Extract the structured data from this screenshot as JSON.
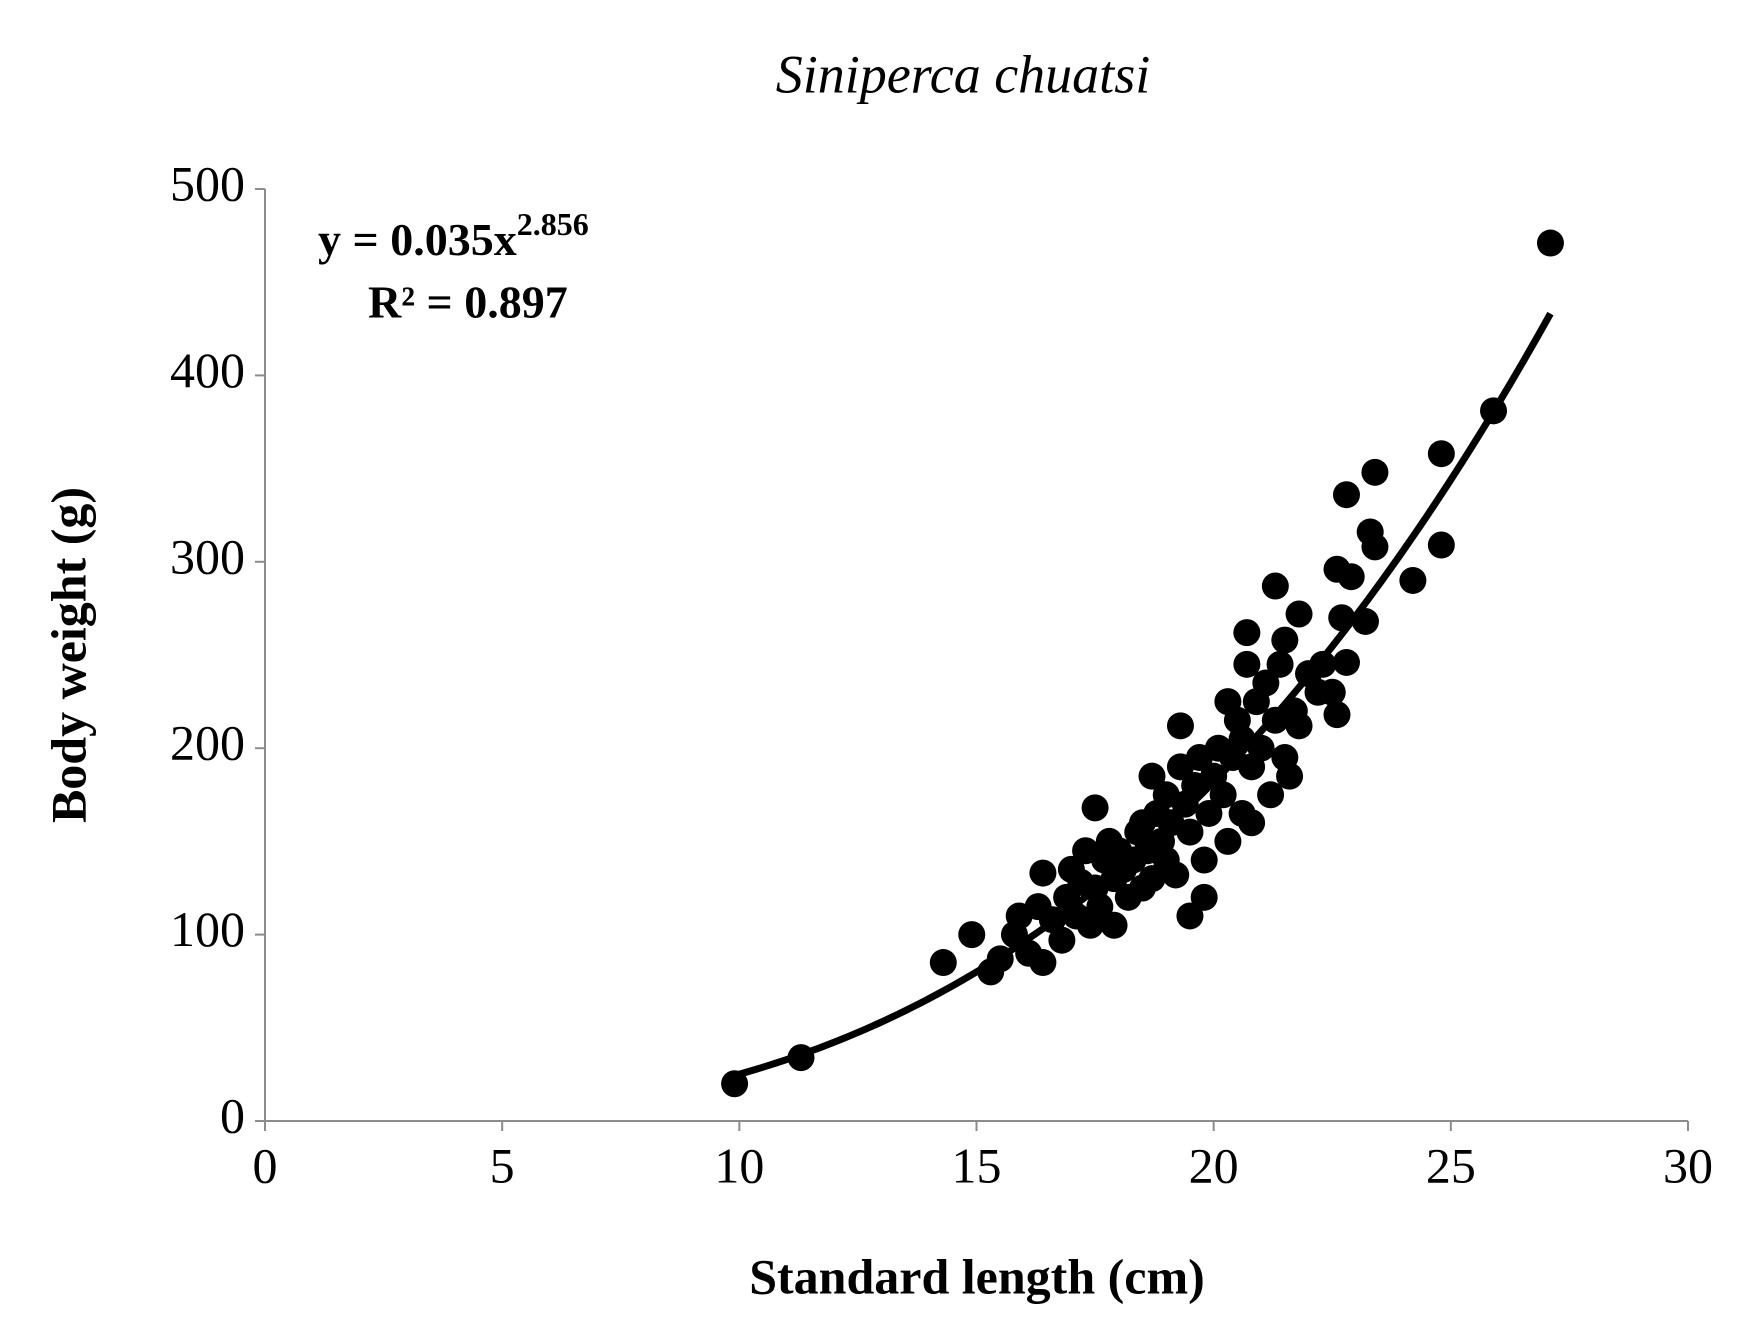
{
  "chart_data": {
    "type": "scatter",
    "title": "Siniperca chuatsi",
    "x_label": "Standard length (cm)",
    "y_label": "Body weight (g)",
    "annotations": {
      "equation": "y = 0.035x",
      "equation_exponent": "2.856",
      "r_squared": "R² = 0.897"
    },
    "fit": {
      "a": 0.035,
      "b": 2.856,
      "x_range": [
        9.9,
        27.1
      ]
    },
    "color": "#000000",
    "xlim": [
      0,
      30
    ],
    "xticks": [
      0,
      5,
      10,
      15,
      20,
      25,
      30
    ],
    "ylim": [
      0,
      500
    ],
    "yticks": [
      0,
      100,
      200,
      300,
      400,
      500
    ],
    "grid": false,
    "x": [
      9.9,
      11.3,
      14.3,
      14.9,
      15.3,
      15.5,
      15.8,
      15.9,
      16.1,
      16.3,
      16.4,
      16.4,
      16.6,
      16.8,
      16.9,
      17.0,
      17.1,
      17.2,
      17.3,
      17.4,
      17.5,
      17.5,
      17.6,
      17.7,
      17.8,
      17.9,
      17.9,
      18.0,
      18.1,
      18.2,
      18.3,
      18.4,
      18.5,
      18.5,
      18.6,
      18.7,
      18.7,
      18.8,
      18.9,
      19.0,
      19.0,
      19.1,
      19.2,
      19.3,
      19.3,
      19.4,
      19.5,
      19.5,
      19.6,
      19.7,
      19.8,
      19.8,
      19.9,
      20.0,
      20.1,
      20.2,
      20.3,
      20.3,
      20.4,
      20.5,
      20.6,
      20.6,
      20.7,
      20.7,
      20.8,
      20.8,
      20.9,
      21.0,
      21.1,
      21.2,
      21.3,
      21.3,
      21.4,
      21.5,
      21.5,
      21.6,
      21.7,
      21.8,
      21.8,
      22.0,
      22.2,
      22.3,
      22.5,
      22.6,
      22.6,
      22.7,
      22.8,
      22.8,
      22.9,
      23.2,
      23.3,
      23.4,
      23.4,
      24.2,
      24.8,
      24.8,
      25.9,
      27.1
    ],
    "values": [
      20,
      34,
      85,
      100,
      80,
      87,
      100,
      110,
      90,
      115,
      133,
      85,
      108,
      97,
      120,
      135,
      110,
      128,
      145,
      105,
      168,
      125,
      115,
      140,
      150,
      105,
      130,
      145,
      135,
      120,
      140,
      155,
      125,
      160,
      145,
      130,
      185,
      165,
      150,
      175,
      140,
      160,
      132,
      212,
      190,
      170,
      110,
      155,
      180,
      195,
      140,
      120,
      165,
      185,
      200,
      175,
      225,
      150,
      195,
      215,
      165,
      205,
      262,
      245,
      190,
      160,
      225,
      200,
      235,
      175,
      287,
      215,
      245,
      258,
      195,
      185,
      220,
      272,
      212,
      240,
      230,
      245,
      230,
      218,
      296,
      270,
      336,
      246,
      292,
      268,
      316,
      308,
      348,
      290,
      358,
      309,
      381,
      471
    ]
  }
}
